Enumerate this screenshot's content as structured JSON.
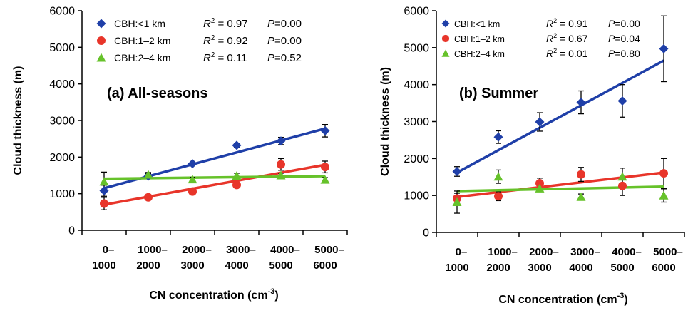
{
  "x_categories": [
    [
      "0–",
      "1000"
    ],
    [
      "1000–",
      "2000"
    ],
    [
      "2000–",
      "3000"
    ],
    [
      "3000–",
      "4000"
    ],
    [
      "4000–",
      "5000"
    ],
    [
      "5000–",
      "6000"
    ]
  ],
  "chart_data": [
    {
      "type": "scatter",
      "annotation": "(a) All-seasons",
      "ylabel": "Cloud thickness (m)",
      "xlabel": "CN concentration (cm",
      "xlabel_sup": "-3",
      "xlabel_end": ")",
      "ylim": [
        0,
        6000
      ],
      "yticks": [
        "0",
        "1000",
        "2000",
        "3000",
        "4000",
        "5000",
        "6000"
      ],
      "grid": false,
      "legend_position": "top-left",
      "series": [
        {
          "name": "CBH:<1 km",
          "color": "#1f3fa8",
          "marker": "diamond",
          "values": [
            1080,
            1480,
            1820,
            2320,
            2440,
            2720
          ],
          "errors": [
            150,
            70,
            60,
            60,
            100,
            170
          ],
          "fit": [
            1150,
            2780
          ],
          "r2": "0.97",
          "p": "0.00"
        },
        {
          "name": "CBH:1–2 km",
          "color": "#e8352a",
          "marker": "circle",
          "values": [
            730,
            900,
            1060,
            1240,
            1800,
            1730
          ],
          "errors": [
            170,
            40,
            60,
            60,
            160,
            160
          ],
          "fit": [
            700,
            1790
          ],
          "r2": "0.92",
          "p": "0.00"
        },
        {
          "name": "CBH:2–4 km",
          "color": "#66c22a",
          "marker": "triangle",
          "values": [
            1330,
            1520,
            1390,
            1490,
            1500,
            1380
          ],
          "errors": [
            260,
            60,
            60,
            70,
            60,
            60
          ],
          "fit": [
            1410,
            1480
          ],
          "r2": "0.11",
          "p": "0.52"
        }
      ]
    },
    {
      "type": "scatter",
      "annotation": "(b) Summer",
      "ylabel": "Cloud thickness (m)",
      "xlabel": "CN concentration (cm",
      "xlabel_sup": "-3",
      "xlabel_end": ")",
      "ylim": [
        0,
        6000
      ],
      "yticks": [
        "0",
        "1000",
        "2000",
        "3000",
        "4000",
        "5000",
        "6000"
      ],
      "grid": false,
      "legend_position": "top-left",
      "series": [
        {
          "name": "CBH:<1 km",
          "color": "#1f3fa8",
          "marker": "diamond",
          "values": [
            1650,
            2580,
            2990,
            3520,
            3560,
            4970
          ],
          "errors": [
            130,
            170,
            250,
            310,
            440,
            890
          ],
          "fit": [
            1620,
            4650
          ],
          "r2": "0.91",
          "p": "0.00"
        },
        {
          "name": "CBH:1–2 km",
          "color": "#e8352a",
          "marker": "circle",
          "values": [
            920,
            980,
            1330,
            1570,
            1260,
            1600
          ],
          "errors": [
            140,
            120,
            140,
            190,
            260,
            400
          ],
          "fit": [
            960,
            1620
          ],
          "r2": "0.67",
          "p": "0.04"
        },
        {
          "name": "CBH:2–4 km",
          "color": "#66c22a",
          "marker": "triangle",
          "values": [
            820,
            1510,
            1190,
            960,
            1510,
            1000
          ],
          "errors": [
            300,
            180,
            80,
            80,
            230,
            180
          ],
          "fit": [
            1120,
            1240
          ],
          "r2": "0.01",
          "p": "0.80"
        }
      ]
    }
  ]
}
